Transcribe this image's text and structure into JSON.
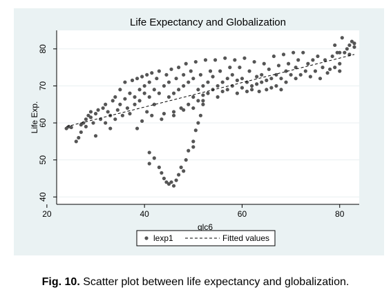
{
  "chart_data": {
    "type": "scatter",
    "title": "Life Expectancy and Globalization",
    "xlabel": "glc6",
    "ylabel": "Life Exp.",
    "xlim": [
      22,
      84
    ],
    "ylim": [
      38,
      85
    ],
    "xticks": [
      20,
      40,
      60,
      80
    ],
    "yticks": [
      40,
      50,
      60,
      70,
      80
    ],
    "grid": "horizontal",
    "legend_position": "bottom",
    "series": [
      {
        "name": "lexp1",
        "type": "scatter",
        "color": "#555555",
        "points": [
          [
            24,
            58.5
          ],
          [
            24.5,
            59
          ],
          [
            25,
            58.8
          ],
          [
            26,
            55
          ],
          [
            26.5,
            56
          ],
          [
            27,
            57.5
          ],
          [
            27,
            59.5
          ],
          [
            27.5,
            60
          ],
          [
            28,
            61
          ],
          [
            28,
            59
          ],
          [
            28.5,
            62
          ],
          [
            29,
            61.5
          ],
          [
            29,
            63
          ],
          [
            29.5,
            60
          ],
          [
            30,
            56.5
          ],
          [
            30,
            62.5
          ],
          [
            30.5,
            63.5
          ],
          [
            31,
            61
          ],
          [
            31.5,
            64
          ],
          [
            32,
            65
          ],
          [
            32,
            60
          ],
          [
            32.5,
            63
          ],
          [
            33,
            62
          ],
          [
            33,
            58.5
          ],
          [
            33.5,
            66
          ],
          [
            34,
            67
          ],
          [
            34,
            61
          ],
          [
            34.5,
            63.5
          ],
          [
            35,
            65
          ],
          [
            35,
            69
          ],
          [
            35.5,
            62
          ],
          [
            36,
            66.5
          ],
          [
            36,
            71
          ],
          [
            36.5,
            64
          ],
          [
            37,
            68
          ],
          [
            37,
            62.5
          ],
          [
            37.5,
            71.5
          ],
          [
            38,
            67
          ],
          [
            38,
            65
          ],
          [
            38.5,
            72
          ],
          [
            38.5,
            58.5
          ],
          [
            39,
            69
          ],
          [
            39,
            66
          ],
          [
            39.5,
            72.5
          ],
          [
            39.5,
            60.5
          ],
          [
            40,
            68
          ],
          [
            40,
            70
          ],
          [
            40.5,
            73
          ],
          [
            40.5,
            63
          ],
          [
            41,
            67
          ],
          [
            41,
            71
          ],
          [
            41.5,
            73.5
          ],
          [
            41.5,
            62
          ],
          [
            42,
            69
          ],
          [
            42,
            65
          ],
          [
            42.5,
            72
          ],
          [
            43,
            74
          ],
          [
            43,
            68
          ],
          [
            43.5,
            61
          ],
          [
            44,
            70
          ],
          [
            44,
            62.5
          ],
          [
            44.5,
            73
          ],
          [
            45,
            71
          ],
          [
            45,
            67
          ],
          [
            45.5,
            74.5
          ],
          [
            46,
            68
          ],
          [
            46,
            63
          ],
          [
            46.5,
            72
          ],
          [
            47,
            75
          ],
          [
            47,
            69
          ],
          [
            47.5,
            64
          ],
          [
            48,
            73
          ],
          [
            48,
            70
          ],
          [
            48.5,
            76
          ],
          [
            49,
            65
          ],
          [
            49,
            71
          ],
          [
            49.5,
            74
          ],
          [
            50,
            67
          ],
          [
            50,
            72
          ],
          [
            50.5,
            76.5
          ],
          [
            51,
            69
          ],
          [
            51,
            66
          ],
          [
            51.5,
            73
          ],
          [
            52,
            70
          ],
          [
            52,
            67.5
          ],
          [
            52.5,
            77
          ],
          [
            53,
            68
          ],
          [
            53,
            71
          ],
          [
            53.5,
            74
          ],
          [
            54,
            69
          ],
          [
            54,
            72.5
          ],
          [
            54.5,
            77
          ],
          [
            55,
            70
          ],
          [
            55,
            67
          ],
          [
            55.5,
            74
          ],
          [
            56,
            71
          ],
          [
            56,
            68.5
          ],
          [
            56.5,
            77.5
          ],
          [
            57,
            69
          ],
          [
            57,
            72
          ],
          [
            57.5,
            75
          ],
          [
            58,
            70
          ],
          [
            58,
            73
          ],
          [
            58.5,
            77
          ],
          [
            59,
            68
          ],
          [
            59,
            71.5
          ],
          [
            59.5,
            75
          ],
          [
            60,
            69.5
          ],
          [
            60,
            72
          ],
          [
            60.5,
            77.5
          ],
          [
            61,
            68.5
          ],
          [
            61,
            71
          ],
          [
            61.5,
            74
          ],
          [
            62,
            70
          ],
          [
            62,
            69
          ],
          [
            62.5,
            76.5
          ],
          [
            63,
            70.5
          ],
          [
            63,
            72.5
          ],
          [
            63.5,
            68.5
          ],
          [
            64,
            71
          ],
          [
            64,
            73
          ],
          [
            64.5,
            76
          ],
          [
            65,
            69
          ],
          [
            65,
            71.5
          ],
          [
            65.5,
            74.5
          ],
          [
            66,
            72
          ],
          [
            66,
            69.5
          ],
          [
            66.5,
            78
          ],
          [
            67,
            70
          ],
          [
            67,
            73
          ],
          [
            67.5,
            75.5
          ],
          [
            68,
            72
          ],
          [
            68,
            69
          ],
          [
            68.5,
            78.5
          ],
          [
            69,
            71
          ],
          [
            69,
            74
          ],
          [
            69.5,
            76
          ],
          [
            70,
            73
          ],
          [
            70.5,
            79
          ],
          [
            71,
            72
          ],
          [
            71,
            75
          ],
          [
            71.5,
            77
          ],
          [
            72,
            73
          ],
          [
            72.5,
            79
          ],
          [
            73,
            74
          ],
          [
            73.5,
            76
          ],
          [
            74,
            72.5
          ],
          [
            74.5,
            77
          ],
          [
            75,
            74
          ],
          [
            75.5,
            78
          ],
          [
            76,
            72
          ],
          [
            76.5,
            75
          ],
          [
            77,
            77
          ],
          [
            77.5,
            73.5
          ],
          [
            78,
            74.5
          ],
          [
            78.5,
            78
          ],
          [
            79,
            75
          ],
          [
            79.5,
            79
          ],
          [
            80,
            74
          ],
          [
            80,
            76
          ],
          [
            80.5,
            83
          ],
          [
            81,
            79
          ],
          [
            81.5,
            80
          ],
          [
            82,
            81
          ],
          [
            82,
            78.5
          ],
          [
            82.5,
            82
          ],
          [
            83,
            80.5
          ],
          [
            83,
            81.5
          ],
          [
            79,
            81
          ],
          [
            80,
            79
          ],
          [
            41,
            52
          ],
          [
            41,
            49
          ],
          [
            42,
            50.5
          ],
          [
            43,
            48
          ],
          [
            43.5,
            46.5
          ],
          [
            44,
            45
          ],
          [
            44.5,
            44
          ],
          [
            45,
            43.5
          ],
          [
            45.5,
            44
          ],
          [
            46,
            43
          ],
          [
            46.5,
            44.5
          ],
          [
            47,
            46
          ],
          [
            47.5,
            48
          ],
          [
            48,
            47
          ],
          [
            48.5,
            50
          ],
          [
            49,
            52.5
          ],
          [
            50,
            55
          ],
          [
            50,
            53.5
          ],
          [
            50.5,
            58
          ],
          [
            51,
            60
          ],
          [
            51.5,
            62
          ],
          [
            52,
            65
          ],
          [
            46,
            62
          ],
          [
            48,
            63.5
          ],
          [
            50,
            64
          ],
          [
            52,
            66
          ]
        ]
      },
      {
        "name": "Fitted values",
        "type": "line",
        "style": "dashed",
        "color": "#000000",
        "x": [
          24,
          83
        ],
        "y": [
          59.0,
          78.5
        ]
      }
    ]
  },
  "caption": {
    "label": "Fig. 10.",
    "text": " Scatter plot between life expectancy and globalization."
  }
}
